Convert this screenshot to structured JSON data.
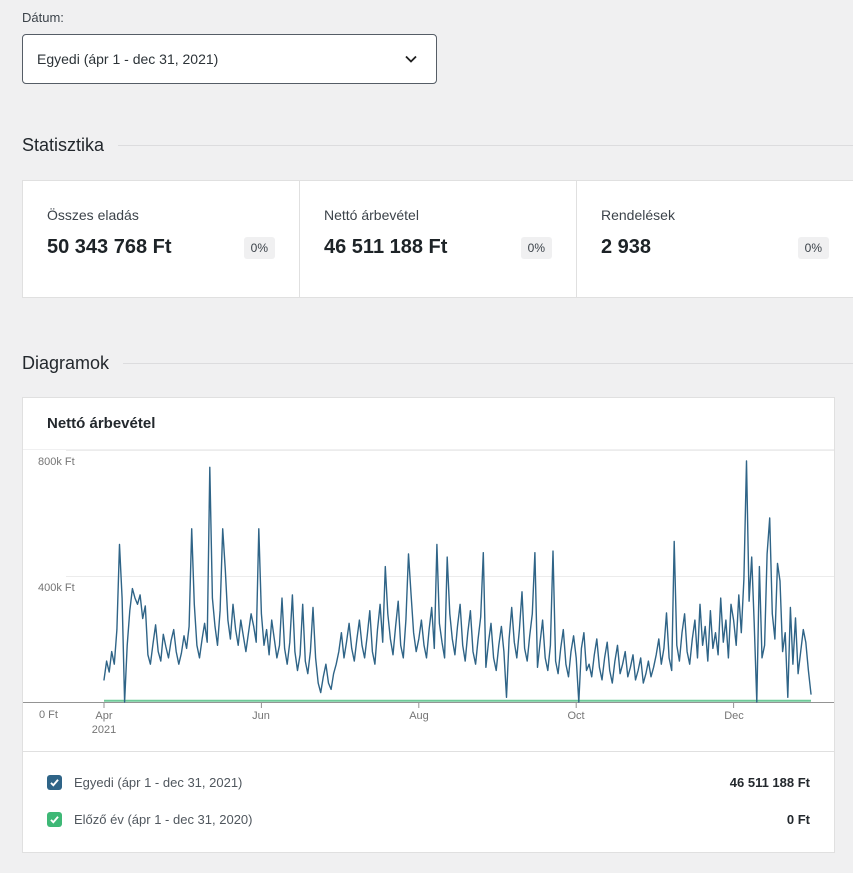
{
  "filter": {
    "label": "Dátum:",
    "selected": "Egyedi (ápr 1 - dec 31, 2021)"
  },
  "stats": {
    "title": "Statisztika",
    "cards": [
      {
        "label": "Összes eladás",
        "value": "50 343 768 Ft",
        "badge": "0%"
      },
      {
        "label": "Nettó árbevétel",
        "value": "46 511 188 Ft",
        "badge": "0%"
      },
      {
        "label": "Rendelések",
        "value": "2 938",
        "badge": "0%"
      }
    ]
  },
  "charts": {
    "title": "Diagramok",
    "chart_title": "Nettó árbevétel",
    "legend": [
      {
        "label": "Egyedi (ápr 1 - dec 31, 2021)",
        "value": "46 511 188 Ft",
        "color": "#2f6487",
        "checked": true
      },
      {
        "label": "Előző év (ápr 1 - dec 31, 2020)",
        "value": "0 Ft",
        "color": "#3eb876",
        "checked": true
      }
    ]
  },
  "chart_data": {
    "type": "line",
    "title": "Nettó árbevétel",
    "unit": "Ft",
    "values_unit": "k Ft (thousands of Ft per day)",
    "x_range": [
      "2021-04-01",
      "2021-12-31"
    ],
    "ylim": [
      0,
      800
    ],
    "grid": true,
    "y_gridlines": [
      {
        "label": "800k Ft",
        "value": 800
      },
      {
        "label": "400k Ft",
        "value": 400
      }
    ],
    "y_zero_label": "0 Ft",
    "x_ticks": [
      {
        "label": "Apr",
        "sublabel": "2021",
        "day": 0
      },
      {
        "label": "Jun",
        "day": 61
      },
      {
        "label": "Aug",
        "day": 122
      },
      {
        "label": "Oct",
        "day": 183
      },
      {
        "label": "Dec",
        "day": 244
      }
    ],
    "series": [
      {
        "name": "Egyedi (ápr 1 - dec 31, 2021)",
        "color": "#2f6487",
        "values": [
          70,
          130,
          95,
          160,
          120,
          230,
          500,
          330,
          0,
          180,
          290,
          360,
          330,
          310,
          340,
          265,
          305,
          150,
          120,
          185,
          245,
          160,
          130,
          215,
          175,
          140,
          195,
          230,
          160,
          120,
          155,
          210,
          170,
          240,
          550,
          310,
          180,
          140,
          200,
          250,
          190,
          745,
          330,
          240,
          180,
          290,
          550,
          420,
          260,
          200,
          310,
          230,
          180,
          260,
          210,
          160,
          220,
          280,
          240,
          190,
          550,
          280,
          180,
          230,
          150,
          260,
          200,
          140,
          180,
          330,
          170,
          120,
          190,
          340,
          160,
          100,
          150,
          310,
          130,
          90,
          160,
          300,
          140,
          60,
          30,
          80,
          120,
          60,
          40,
          90,
          120,
          160,
          220,
          140,
          190,
          250,
          170,
          130,
          200,
          260,
          180,
          140,
          210,
          290,
          160,
          120,
          230,
          310,
          190,
          430,
          280,
          200,
          150,
          240,
          320,
          180,
          140,
          260,
          470,
          340,
          220,
          160,
          200,
          260,
          180,
          140,
          230,
          300,
          170,
          500,
          250,
          190,
          140,
          460,
          280,
          200,
          150,
          240,
          310,
          180,
          130,
          220,
          290,
          160,
          120,
          200,
          270,
          474,
          110,
          190,
          250,
          140,
          100,
          180,
          240,
          160,
          15,
          200,
          300,
          190,
          140,
          230,
          350,
          170,
          130,
          210,
          280,
          474,
          110,
          190,
          260,
          140,
          100,
          180,
          479,
          130,
          90,
          170,
          230,
          120,
          80,
          160,
          210,
          140,
          0,
          170,
          220,
          100,
          120,
          80,
          150,
          200,
          110,
          70,
          140,
          190,
          100,
          60,
          130,
          180,
          90,
          120,
          160,
          80,
          110,
          150,
          70,
          100,
          140,
          60,
          90,
          130,
          80,
          110,
          150,
          200,
          120,
          170,
          283,
          140,
          100,
          510,
          180,
          130,
          220,
          280,
          160,
          120,
          200,
          260,
          140,
          310,
          180,
          240,
          130,
          290,
          170,
          220,
          150,
          330,
          190,
          260,
          140,
          310,
          260,
          180,
          340,
          220,
          390,
          765,
          320,
          460,
          250,
          0,
          430,
          140,
          180,
          470,
          584,
          280,
          200,
          440,
          384,
          160,
          220,
          15,
          300,
          120,
          267,
          90,
          160,
          230,
          190,
          100,
          25
        ]
      },
      {
        "name": "Előző év (ápr 1 - dec 31, 2020)",
        "color": "#3eb876",
        "constant": 0
      }
    ]
  }
}
